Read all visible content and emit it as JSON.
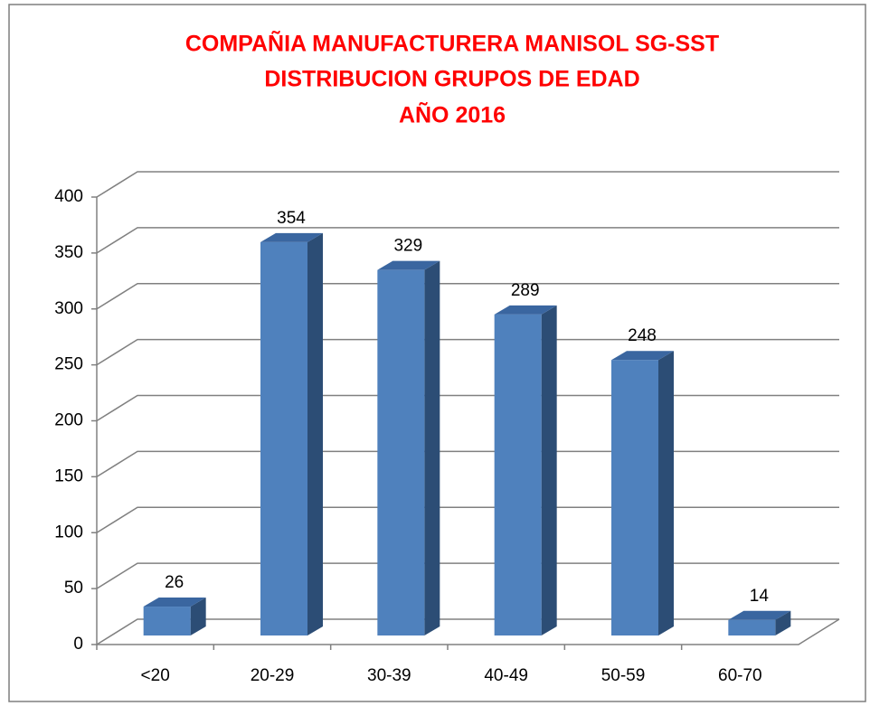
{
  "chart_data": {
    "type": "bar3d",
    "title": [
      "COMPAÑIA MANUFACTURERA  MANISOL SG-SST",
      "DISTRIBUCION GRUPOS DE EDAD",
      "AÑO 2016"
    ],
    "categories": [
      "<20",
      "20-29",
      "30-39",
      "40-49",
      "50-59",
      "60-70"
    ],
    "values": [
      26,
      354,
      329,
      289,
      248,
      14
    ],
    "color": "#4f81bd",
    "ylim": [
      0,
      400
    ],
    "yticks": [
      0,
      50,
      100,
      150,
      200,
      250,
      300,
      350,
      400
    ],
    "grid": true
  }
}
